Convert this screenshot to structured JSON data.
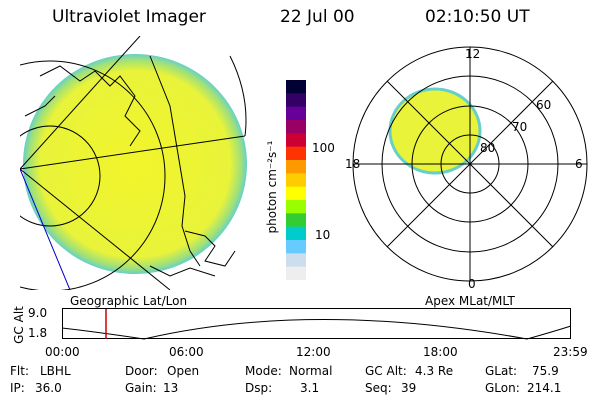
{
  "header": {
    "title": "Ultraviolet Imager",
    "date": "22 Jul 00",
    "time": "02:10:50 UT"
  },
  "colorbar": {
    "unit_label": "photon cm⁻²s⁻¹",
    "ticks": [
      "100",
      "10"
    ],
    "colors": [
      "#000033",
      "#330066",
      "#660099",
      "#990066",
      "#cc0033",
      "#ff3300",
      "#ff9900",
      "#ffcc00",
      "#ffff00",
      "#99ff00",
      "#33cc33",
      "#00cccc",
      "#66ccff",
      "#ccddee",
      "#eeeeee"
    ]
  },
  "polar_plot": {
    "mlt_labels": [
      "12",
      "18",
      "6",
      "0"
    ],
    "lat_labels": [
      "60",
      "70",
      "80"
    ]
  },
  "panel_labels": {
    "left": "Geographic Lat/Lon",
    "right": "Apex MLat/MLT"
  },
  "timeline": {
    "ylabel": "GC Alt",
    "yticks": [
      "9.0",
      "1.8"
    ],
    "xticks": [
      "00:00",
      "06:00",
      "12:00",
      "18:00",
      "23:59"
    ],
    "marker_color": "#cc0000"
  },
  "status": {
    "flt_label": "Flt:",
    "flt_value": "LBHL",
    "door_label": "Door:",
    "door_value": "Open",
    "mode_label": "Mode:",
    "mode_value": "Normal",
    "gcalt_label": "GC Alt:",
    "gcalt_value": "4.3 Re",
    "glat_label": "GLat:",
    "glat_value": "75.9",
    "ip_label": "IP:",
    "ip_value": "36.0",
    "gain_label": "Gain:",
    "gain_value": "13",
    "dsp_label": "Dsp:",
    "dsp_value": "3.1",
    "seq_label": "Seq:",
    "seq_value": "39",
    "glon_label": "GLon:",
    "glon_value": "214.1"
  }
}
